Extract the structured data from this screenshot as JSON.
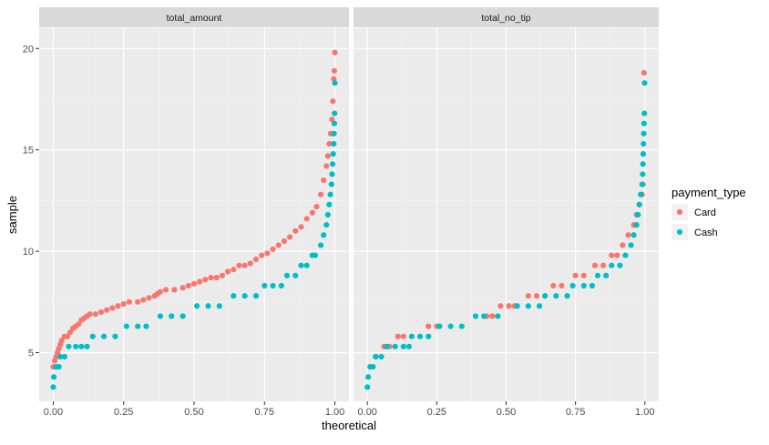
{
  "chart_data": {
    "type": "scatter",
    "xlabel": "theoretical",
    "ylabel": "sample",
    "xlim": [
      -0.05,
      1.05
    ],
    "ylim": [
      2.6,
      21.0
    ],
    "x_ticks": [
      0.0,
      0.25,
      0.5,
      0.75,
      1.0
    ],
    "x_tick_labels": [
      "0.00",
      "0.25",
      "0.50",
      "0.75",
      "1.00"
    ],
    "y_ticks": [
      5,
      10,
      15,
      20
    ],
    "y_tick_labels": [
      "5",
      "10",
      "15",
      "20"
    ],
    "grid": true,
    "legend": {
      "title": "payment_type",
      "position": "right",
      "entries": [
        {
          "name": "Card",
          "color": "#f8766d"
        },
        {
          "name": "Cash",
          "color": "#00bfc4"
        }
      ]
    },
    "facets": [
      {
        "label": "total_amount",
        "series": [
          {
            "name": "Card",
            "color": "#f8766d",
            "points": [
              [
                0.0,
                4.3
              ],
              [
                0.005,
                4.6
              ],
              [
                0.01,
                4.8
              ],
              [
                0.015,
                5.0
              ],
              [
                0.02,
                5.2
              ],
              [
                0.025,
                5.4
              ],
              [
                0.03,
                5.6
              ],
              [
                0.04,
                5.8
              ],
              [
                0.05,
                5.8
              ],
              [
                0.06,
                6.0
              ],
              [
                0.07,
                6.2
              ],
              [
                0.08,
                6.3
              ],
              [
                0.09,
                6.4
              ],
              [
                0.1,
                6.6
              ],
              [
                0.11,
                6.7
              ],
              [
                0.12,
                6.8
              ],
              [
                0.13,
                6.9
              ],
              [
                0.15,
                6.9
              ],
              [
                0.17,
                7.0
              ],
              [
                0.19,
                7.1
              ],
              [
                0.21,
                7.2
              ],
              [
                0.23,
                7.3
              ],
              [
                0.25,
                7.4
              ],
              [
                0.27,
                7.5
              ],
              [
                0.3,
                7.5
              ],
              [
                0.32,
                7.6
              ],
              [
                0.34,
                7.7
              ],
              [
                0.36,
                7.8
              ],
              [
                0.37,
                7.9
              ],
              [
                0.38,
                8.0
              ],
              [
                0.4,
                8.1
              ],
              [
                0.43,
                8.1
              ],
              [
                0.46,
                8.2
              ],
              [
                0.48,
                8.3
              ],
              [
                0.5,
                8.4
              ],
              [
                0.52,
                8.5
              ],
              [
                0.54,
                8.6
              ],
              [
                0.56,
                8.7
              ],
              [
                0.58,
                8.7
              ],
              [
                0.6,
                8.8
              ],
              [
                0.62,
                9.0
              ],
              [
                0.64,
                9.1
              ],
              [
                0.66,
                9.3
              ],
              [
                0.68,
                9.3
              ],
              [
                0.7,
                9.4
              ],
              [
                0.72,
                9.6
              ],
              [
                0.74,
                9.8
              ],
              [
                0.76,
                9.9
              ],
              [
                0.78,
                10.1
              ],
              [
                0.8,
                10.3
              ],
              [
                0.82,
                10.5
              ],
              [
                0.84,
                10.7
              ],
              [
                0.86,
                11.0
              ],
              [
                0.88,
                11.2
              ],
              [
                0.9,
                11.6
              ],
              [
                0.92,
                11.9
              ],
              [
                0.935,
                12.2
              ],
              [
                0.95,
                12.8
              ],
              [
                0.96,
                13.5
              ],
              [
                0.97,
                14.2
              ],
              [
                0.975,
                14.7
              ],
              [
                0.98,
                15.3
              ],
              [
                0.985,
                15.8
              ],
              [
                0.99,
                16.5
              ],
              [
                0.993,
                17.4
              ],
              [
                0.996,
                18.5
              ],
              [
                0.998,
                18.9
              ],
              [
                1.0,
                19.8
              ]
            ]
          },
          {
            "name": "Cash",
            "color": "#00bfc4",
            "points": [
              [
                0.0,
                3.3
              ],
              [
                0.002,
                3.8
              ],
              [
                0.01,
                4.3
              ],
              [
                0.02,
                4.3
              ],
              [
                0.025,
                4.8
              ],
              [
                0.04,
                4.8
              ],
              [
                0.055,
                5.3
              ],
              [
                0.08,
                5.3
              ],
              [
                0.1,
                5.3
              ],
              [
                0.12,
                5.3
              ],
              [
                0.14,
                5.8
              ],
              [
                0.18,
                5.8
              ],
              [
                0.22,
                5.8
              ],
              [
                0.26,
                6.3
              ],
              [
                0.3,
                6.3
              ],
              [
                0.33,
                6.3
              ],
              [
                0.38,
                6.8
              ],
              [
                0.42,
                6.8
              ],
              [
                0.46,
                6.8
              ],
              [
                0.51,
                7.3
              ],
              [
                0.55,
                7.3
              ],
              [
                0.59,
                7.3
              ],
              [
                0.64,
                7.8
              ],
              [
                0.68,
                7.8
              ],
              [
                0.72,
                7.8
              ],
              [
                0.75,
                8.3
              ],
              [
                0.78,
                8.3
              ],
              [
                0.81,
                8.3
              ],
              [
                0.83,
                8.8
              ],
              [
                0.86,
                8.8
              ],
              [
                0.88,
                9.3
              ],
              [
                0.9,
                9.3
              ],
              [
                0.92,
                9.8
              ],
              [
                0.93,
                9.8
              ],
              [
                0.95,
                10.3
              ],
              [
                0.96,
                10.8
              ],
              [
                0.97,
                11.3
              ],
              [
                0.975,
                11.8
              ],
              [
                0.98,
                12.3
              ],
              [
                0.984,
                12.8
              ],
              [
                0.988,
                13.3
              ],
              [
                0.99,
                13.8
              ],
              [
                0.992,
                14.3
              ],
              [
                0.994,
                14.8
              ],
              [
                0.996,
                15.3
              ],
              [
                0.997,
                15.8
              ],
              [
                0.998,
                16.3
              ],
              [
                0.999,
                16.8
              ],
              [
                1.0,
                18.3
              ]
            ]
          }
        ]
      },
      {
        "label": "total_no_tip",
        "series": [
          {
            "name": "Card",
            "color": "#f8766d",
            "points": [
              [
                0.03,
                4.8
              ],
              [
                0.06,
                5.3
              ],
              [
                0.08,
                5.3
              ],
              [
                0.11,
                5.8
              ],
              [
                0.13,
                5.8
              ],
              [
                0.22,
                6.3
              ],
              [
                0.25,
                6.3
              ],
              [
                0.43,
                6.8
              ],
              [
                0.45,
                6.8
              ],
              [
                0.48,
                7.3
              ],
              [
                0.51,
                7.3
              ],
              [
                0.53,
                7.3
              ],
              [
                0.58,
                7.8
              ],
              [
                0.61,
                7.8
              ],
              [
                0.67,
                8.3
              ],
              [
                0.7,
                8.3
              ],
              [
                0.75,
                8.8
              ],
              [
                0.78,
                8.8
              ],
              [
                0.82,
                9.3
              ],
              [
                0.85,
                9.3
              ],
              [
                0.88,
                9.8
              ],
              [
                0.9,
                9.8
              ],
              [
                0.92,
                10.3
              ],
              [
                0.94,
                10.8
              ],
              [
                0.96,
                11.3
              ],
              [
                0.97,
                11.8
              ],
              [
                0.98,
                12.3
              ],
              [
                0.99,
                12.8
              ],
              [
                0.993,
                13.3
              ],
              [
                0.997,
                18.8
              ]
            ]
          },
          {
            "name": "Cash",
            "color": "#00bfc4",
            "points": [
              [
                0.0,
                3.3
              ],
              [
                0.003,
                3.8
              ],
              [
                0.01,
                4.3
              ],
              [
                0.02,
                4.3
              ],
              [
                0.03,
                4.8
              ],
              [
                0.05,
                4.8
              ],
              [
                0.07,
                5.3
              ],
              [
                0.1,
                5.3
              ],
              [
                0.13,
                5.3
              ],
              [
                0.15,
                5.3
              ],
              [
                0.16,
                5.8
              ],
              [
                0.19,
                5.8
              ],
              [
                0.22,
                5.8
              ],
              [
                0.26,
                6.3
              ],
              [
                0.3,
                6.3
              ],
              [
                0.34,
                6.3
              ],
              [
                0.39,
                6.8
              ],
              [
                0.42,
                6.8
              ],
              [
                0.47,
                6.8
              ],
              [
                0.54,
                7.3
              ],
              [
                0.58,
                7.3
              ],
              [
                0.62,
                7.3
              ],
              [
                0.64,
                7.8
              ],
              [
                0.68,
                7.8
              ],
              [
                0.72,
                7.8
              ],
              [
                0.74,
                8.3
              ],
              [
                0.78,
                8.3
              ],
              [
                0.81,
                8.3
              ],
              [
                0.83,
                8.8
              ],
              [
                0.86,
                8.8
              ],
              [
                0.88,
                9.3
              ],
              [
                0.91,
                9.3
              ],
              [
                0.93,
                9.8
              ],
              [
                0.95,
                10.3
              ],
              [
                0.96,
                10.8
              ],
              [
                0.97,
                11.3
              ],
              [
                0.975,
                11.8
              ],
              [
                0.98,
                12.3
              ],
              [
                0.985,
                12.8
              ],
              [
                0.99,
                13.3
              ],
              [
                0.992,
                13.8
              ],
              [
                0.993,
                14.3
              ],
              [
                0.994,
                14.8
              ],
              [
                0.995,
                15.3
              ],
              [
                0.996,
                15.8
              ],
              [
                0.997,
                16.3
              ],
              [
                0.998,
                16.8
              ],
              [
                0.999,
                18.3
              ]
            ]
          }
        ]
      }
    ]
  }
}
